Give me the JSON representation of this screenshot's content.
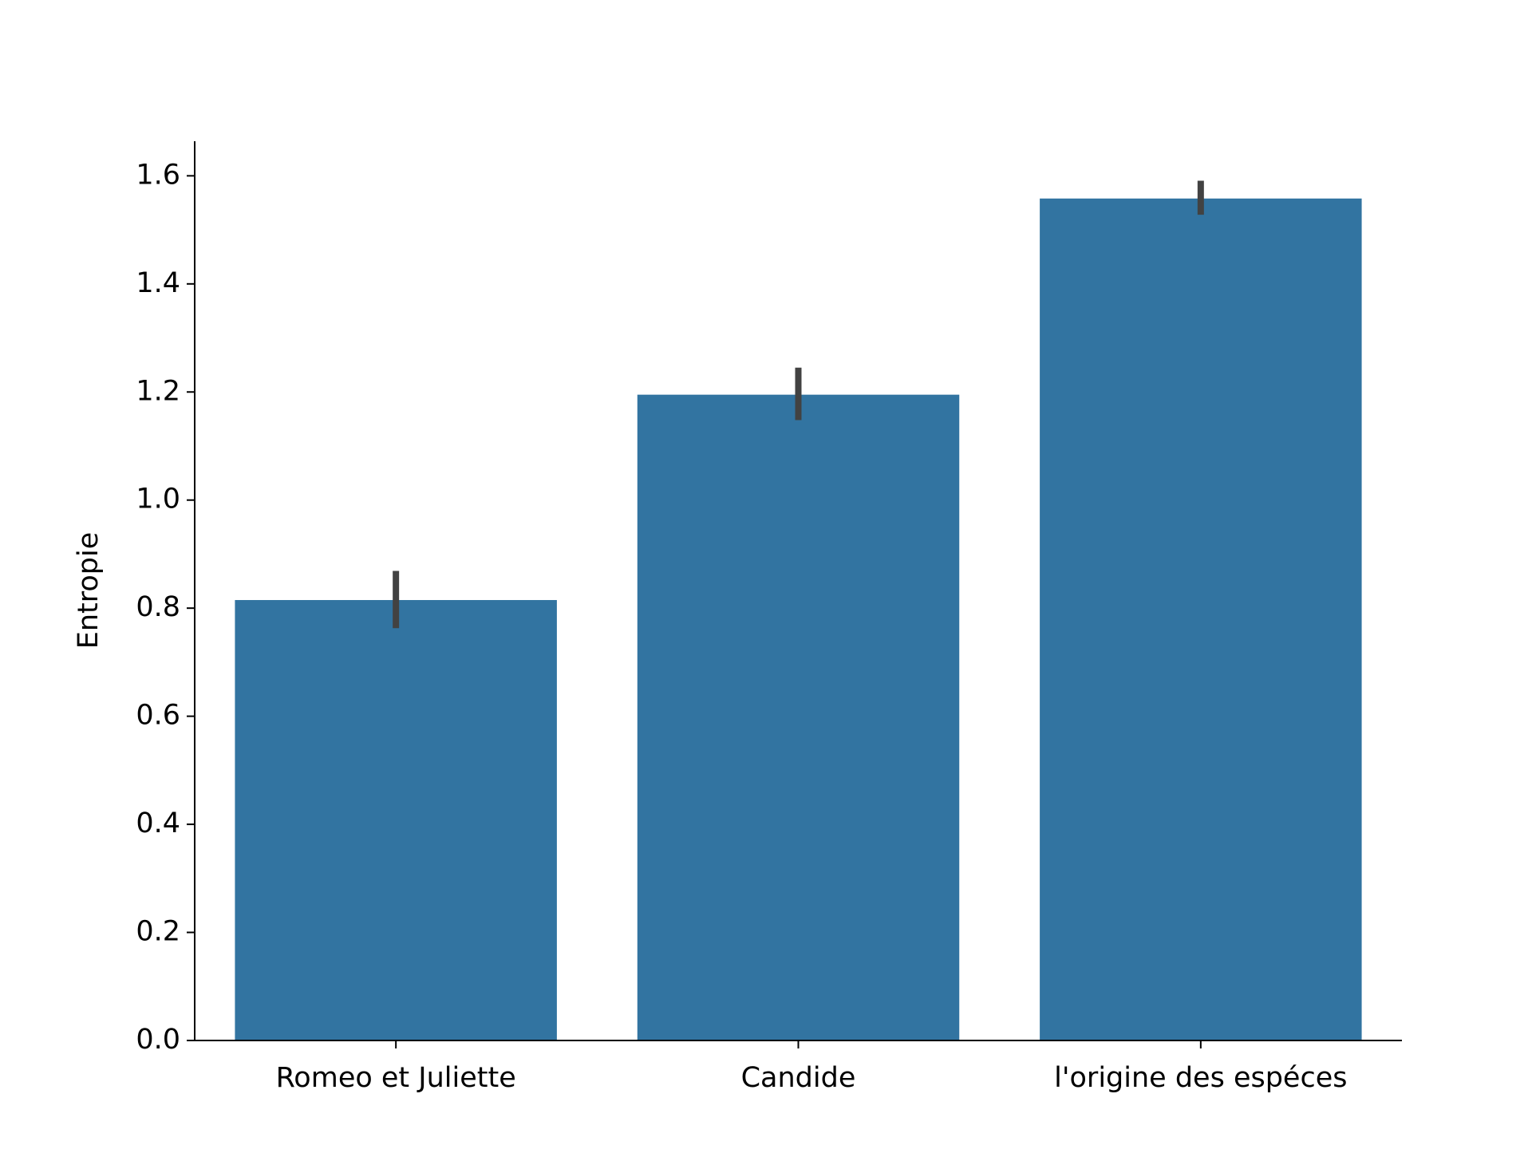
{
  "chart_data": {
    "type": "bar",
    "y_label": "Entropie",
    "categories": [
      "Romeo et Juliette",
      "Candide",
      "l'origine des espéces"
    ],
    "values": [
      0.815,
      1.195,
      1.558
    ],
    "ci_low": [
      0.763,
      1.148,
      1.528
    ],
    "ci_high": [
      0.869,
      1.245,
      1.591
    ],
    "color": "#3274a1",
    "error_color": "#424242",
    "ylim": [
      0,
      1.664
    ],
    "yticks": [
      {
        "value": 0,
        "label": "0.0"
      },
      0.2,
      0.4,
      0.6,
      0.8,
      {
        "value": 1,
        "label": "1.0"
      },
      1.2,
      1.4,
      1.6
    ]
  }
}
